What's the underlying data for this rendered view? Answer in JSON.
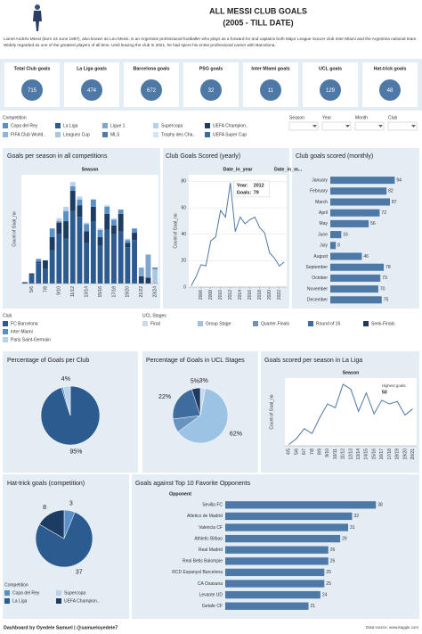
{
  "header": {
    "title": "ALL MESSI CLUB GOALS",
    "subtitle": "(2005 - TILL DATE)",
    "bio": "Lionel Andrés Messi (born 24 June 1987), also known as Leo Messi, is an Argentine professional footballer who plays as a forward for and captains both Major League Soccer club Inter Miami and the Argentina national team. Widely regarded as one of the greatest players of all time. Until leaving the club in 2021, he had spent his entire professional career with Barcelona."
  },
  "kpis": [
    {
      "label": "Total Club goals",
      "value": 715
    },
    {
      "label": "La Liga goals",
      "value": 474
    },
    {
      "label": "Barcelona goals",
      "value": 672
    },
    {
      "label": "PSG goals",
      "value": 32
    },
    {
      "label": "Inter Miami goals",
      "value": 11
    },
    {
      "label": "UCL goals",
      "value": 129
    },
    {
      "label": "Hat-trick goals",
      "value": 48
    }
  ],
  "competition_legend": {
    "title": "Competition",
    "items": [
      {
        "name": "Copa del Rey",
        "color": "#5b8fc7"
      },
      {
        "name": "La Liga",
        "color": "#2c5b8f"
      },
      {
        "name": "Ligue 1",
        "color": "#7fa6cf"
      },
      {
        "name": "Supercopa",
        "color": "#b7d3ec"
      },
      {
        "name": "UEFA Champion..",
        "color": "#1d3c63"
      },
      {
        "name": "FIFA Club World..",
        "color": "#8fb5dc"
      },
      {
        "name": "Leagues Cup",
        "color": "#a9c6e3"
      },
      {
        "name": "MLS",
        "color": "#4a7cb3"
      },
      {
        "name": "Trophy des Cha..",
        "color": "#d2e3f3"
      },
      {
        "name": "UEFA Super Cup",
        "color": "#3a6aa0"
      }
    ]
  },
  "filters": [
    "Season",
    "Year",
    "Month",
    "Club"
  ],
  "chart_data": [
    {
      "type": "bar",
      "stacked": true,
      "title": "Goals per season in all competitions",
      "x_label": "Season",
      "y_label": "Count of Goal_no",
      "categories": [
        null,
        "5/6",
        null,
        "7/8",
        null,
        "9/10",
        null,
        "11/12",
        null,
        "13/14",
        null,
        "15/16",
        null,
        "17/18",
        null,
        "19/20",
        null,
        "21/22",
        null,
        "23/24"
      ],
      "ylim": [
        0,
        75
      ],
      "series": [
        {
          "name": "La Liga",
          "color": "#2c5b8f",
          "values": [
            1,
            6,
            14,
            10,
            23,
            34,
            31,
            50,
            46,
            28,
            43,
            26,
            37,
            34,
            36,
            25,
            30,
            0,
            0,
            0
          ]
        },
        {
          "name": "UEFA Champion..",
          "color": "#1d3c63",
          "values": [
            0,
            1,
            1,
            6,
            9,
            8,
            12,
            14,
            8,
            8,
            10,
            6,
            11,
            6,
            12,
            3,
            5,
            5,
            4,
            0
          ]
        },
        {
          "name": "Copa del Rey",
          "color": "#5b8fc7",
          "values": [
            0,
            0,
            2,
            0,
            6,
            1,
            7,
            3,
            4,
            5,
            5,
            5,
            5,
            4,
            3,
            2,
            3,
            0,
            0,
            0
          ]
        },
        {
          "name": "Supercopa",
          "color": "#b7d3ec",
          "values": [
            0,
            0,
            0,
            0,
            0,
            2,
            3,
            3,
            2,
            1,
            0,
            1,
            1,
            1,
            0,
            1,
            0,
            0,
            0,
            0
          ]
        },
        {
          "name": "Ligue 1",
          "color": "#7fa6cf",
          "values": [
            0,
            0,
            0,
            0,
            0,
            0,
            0,
            0,
            0,
            0,
            0,
            0,
            0,
            0,
            0,
            0,
            0,
            6,
            16,
            0
          ]
        },
        {
          "name": "Leagues Cup",
          "color": "#a9c6e3",
          "values": [
            0,
            0,
            0,
            0,
            0,
            0,
            0,
            0,
            0,
            0,
            0,
            0,
            0,
            0,
            0,
            0,
            0,
            0,
            0,
            10
          ]
        },
        {
          "name": "MLS",
          "color": "#4a7cb3",
          "values": [
            0,
            0,
            0,
            0,
            0,
            0,
            0,
            0,
            0,
            0,
            0,
            0,
            0,
            0,
            0,
            0,
            0,
            0,
            0,
            1
          ]
        }
      ]
    },
    {
      "type": "line",
      "title": "Club Goals Scored (yearly)",
      "x_label": "Date_in_year",
      "y_label": "Count of Goal_no",
      "color": "#4e79a7",
      "x": [
        2004,
        2005,
        2006,
        2007,
        2008,
        2009,
        2010,
        2011,
        2012,
        2013,
        2014,
        2015,
        2016,
        2017,
        2018,
        2019,
        2020,
        2021,
        2022,
        2023
      ],
      "values": [
        1,
        8,
        17,
        16,
        35,
        38,
        58,
        53,
        79,
        42,
        53,
        48,
        51,
        53,
        45,
        41,
        26,
        22,
        16,
        19
      ],
      "xlim": [
        2003.5,
        2023.5
      ],
      "xticks": [
        2006,
        2008,
        2010,
        2012,
        2014,
        2016,
        2018,
        2020,
        2022
      ],
      "ylim": [
        0,
        85
      ],
      "yticks": [
        0,
        20,
        40,
        60,
        80
      ],
      "grid": true,
      "annotations": [
        {
          "label": "Year:",
          "value": 2012
        },
        {
          "label": "Goals:",
          "value": 79
        }
      ]
    },
    {
      "type": "hbar",
      "title": "Club goals scored (monthly)",
      "x_label": "Date_in_m...",
      "color": "#4e79a7",
      "categories": [
        "January",
        "February",
        "March",
        "April",
        "May",
        "June",
        "July",
        "August",
        "September",
        "October",
        "November",
        "December"
      ],
      "values": [
        94,
        82,
        87,
        72,
        56,
        16,
        8,
        46,
        78,
        73,
        70,
        75
      ],
      "xlim": [
        0,
        100
      ]
    },
    {
      "type": "pie",
      "title": "Percentage of Goals per Club",
      "legend_title": "Club",
      "categories": [
        "FC Barcelona",
        "Inter Miami",
        "Paris Saint-Germain"
      ],
      "values": [
        95,
        1,
        4
      ],
      "value_labels": [
        "95%",
        null,
        "4%"
      ],
      "colors": [
        "#2c5b8f",
        "#5b8fc7",
        "#b7d3ec"
      ]
    },
    {
      "type": "pie",
      "title": "Percentage of Goals in UCL Stages",
      "legend_title": "UCL Stages",
      "categories": [
        "Final",
        "Group Stage",
        "Quarter-Finals",
        "Round of 16",
        "Semi-Finals"
      ],
      "values": [
        3,
        62,
        8,
        22,
        5
      ],
      "value_labels": [
        "3%",
        "62%",
        null,
        "22%",
        "5%"
      ],
      "colors": [
        "#c6dbef",
        "#9cc3e4",
        "#6b93c0",
        "#3f6c9e",
        "#1f3a5f"
      ]
    },
    {
      "type": "line",
      "title": "Goals scored per season in La Liga",
      "x_label": "Season",
      "y_label": "Count of Goal_no",
      "color": "#4e79a7",
      "categories": [
        "4/5",
        "5/6",
        "6/7",
        "7/8",
        "8/9",
        "9/10",
        "10/11",
        "11/12",
        "12/13",
        "13/14",
        "14/15",
        "15/16",
        "16/17",
        "17/18",
        "18/19",
        "19/20",
        "20/21"
      ],
      "values": [
        1,
        6,
        14,
        10,
        23,
        34,
        31,
        50,
        46,
        28,
        43,
        26,
        37,
        34,
        36,
        25,
        30
      ],
      "ylim": [
        0,
        55
      ],
      "annotations": [
        {
          "label": "Highest goals:",
          "value": 50
        }
      ]
    },
    {
      "type": "pie",
      "title": "Hat-trick goals (competition)",
      "legend_title": "Competition",
      "categories": [
        "Copa del Rey",
        "La Liga",
        "Supercopa",
        "UEFA Champion.."
      ],
      "values": [
        3,
        37,
        0,
        8
      ],
      "colors": [
        "#5b8fc7",
        "#2c5b8f",
        "#b7d3ec",
        "#1d3c63"
      ]
    },
    {
      "type": "hbar",
      "title": "Goals against Top 10 Favorite Opponents",
      "x_label": "Opponent",
      "color": "#4e79a7",
      "categories": [
        "Sevilla FC",
        "Atletico de Madrid",
        "Valencia CF",
        "Athletic Bilbao",
        "Real Madrid",
        "Real Betis Balompie",
        "RCD Espanyol Barcelona",
        "CA Osasuna",
        "Levante UD",
        "Getafe CF"
      ],
      "values": [
        38,
        32,
        31,
        29,
        26,
        26,
        25,
        25,
        24,
        21
      ],
      "xlim": [
        0,
        42
      ]
    }
  ],
  "footer": {
    "left": "Dashboard by Oyedele Samuel | @samueloyedele7",
    "right": "Data source: www.kaggle.com"
  }
}
